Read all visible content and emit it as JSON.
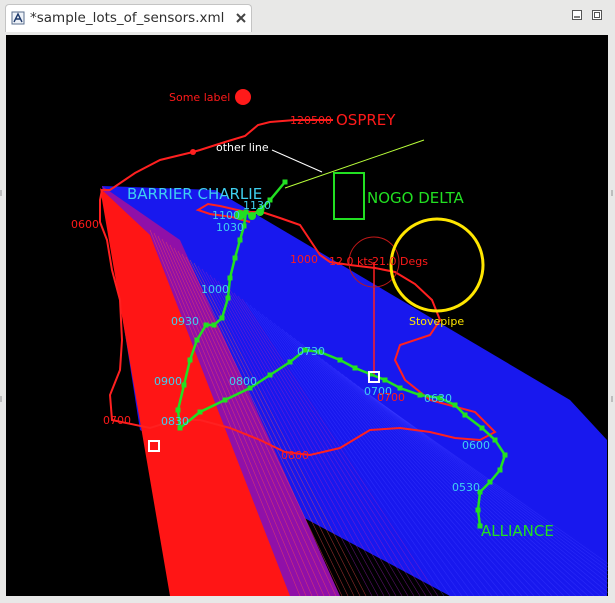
{
  "tab": {
    "title": "*sample_lots_of_sensors.xml",
    "icon": "map-app-icon",
    "close_icon": "close-icon"
  },
  "window_controls": [
    "minimize-icon",
    "maximize-icon"
  ],
  "plot": {
    "background": "#000000",
    "tracks": [
      {
        "name": "OSPREY",
        "color": "#ff2020",
        "time_labels": [
          "120500",
          "0600",
          "1000",
          "0700",
          "0800"
        ],
        "marker_label": "12.0 kts 21.0 Degs"
      },
      {
        "name": "BARRIER CHARLIE",
        "color": "#3fd0f0"
      },
      {
        "name": "ALLIANCE",
        "color": "#22e022",
        "time_labels": [
          "1130",
          "1100",
          "1030",
          "1000",
          "0930",
          "0900",
          "0830",
          "0800",
          "0730",
          "0700",
          "0630",
          "0600",
          "0530"
        ]
      }
    ],
    "annotations": {
      "some_label": "Some label",
      "other_line": "other line",
      "nogo_delta": "NOGO DELTA",
      "stovepipe": "Stovepipe",
      "osprey_speed": "12.0 kts",
      "osprey_course": "21.0 Degs"
    },
    "colors": {
      "red": "#ff1a1a",
      "green": "#22e022",
      "blue": "#1a1aff",
      "cyan": "#3fd0f0",
      "yellow": "#ffe600",
      "yellow_green": "#b9ff3a"
    }
  }
}
